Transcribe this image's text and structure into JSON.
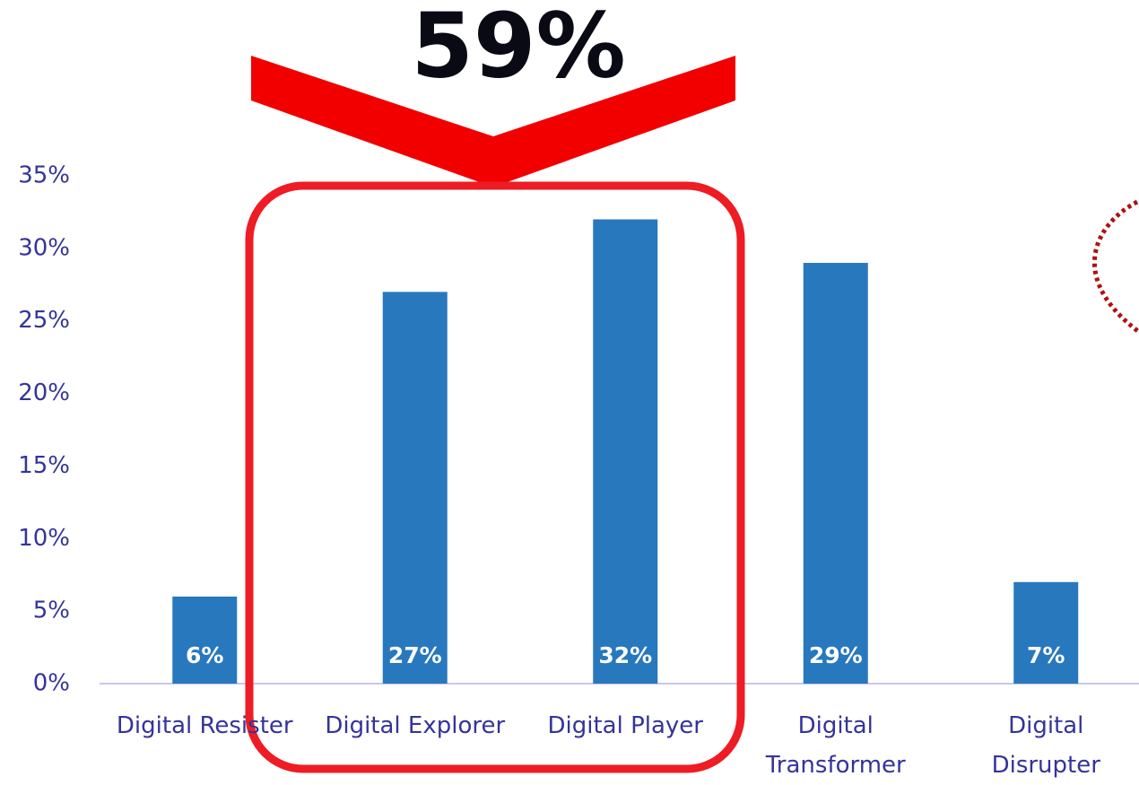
{
  "chart_data": {
    "type": "bar",
    "annotation": "59%",
    "categories": [
      "Digital Resister",
      "Digital Explorer",
      "Digital Player",
      "Digital Transformer",
      "Digital Disrupter"
    ],
    "values": [
      6,
      27,
      32,
      29,
      7
    ],
    "value_labels": [
      "6%",
      "27%",
      "32%",
      "29%",
      "7%"
    ],
    "color": "#2878be",
    "ylim": [
      0,
      35
    ],
    "yticks": [
      {
        "value": 0,
        "label": "0%"
      },
      {
        "value": 5,
        "label": "5%"
      },
      {
        "value": 10,
        "label": "10%"
      },
      {
        "value": 15,
        "label": "15%"
      },
      {
        "value": 20,
        "label": "20%"
      },
      {
        "value": 25,
        "label": "25%"
      },
      {
        "value": 30,
        "label": "30%"
      },
      {
        "value": 35,
        "label": "35%"
      }
    ],
    "grid": false
  }
}
